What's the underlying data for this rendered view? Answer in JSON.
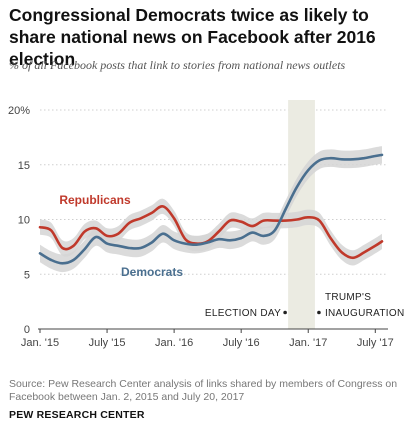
{
  "header": {
    "title": "Congressional Democrats twice as likely to share national news on Facebook after 2016 election",
    "subtitle": "% of all Facebook posts that link to stories from national news outlets"
  },
  "footer": {
    "source": "Source: Pew Research Center analysis of links shared by members of Congress on Facebook between Jan. 2, 2015 and July 20, 2017",
    "brand": "PEW RESEARCH CENTER"
  },
  "colors": {
    "republicans": "#c0392b",
    "democrats": "#4a6f8f",
    "band": "#d5d5d5",
    "highlight": "#ebebe2"
  },
  "chart_data": {
    "type": "line",
    "title": "Congressional Democrats twice as likely to share national news on Facebook after 2016 election",
    "subtitle": "% of all Facebook posts that link to stories from national news outlets",
    "x_tick_labels": [
      "Jan. '15",
      "July '15",
      "Jan. '16",
      "July '16",
      "Jan. '17",
      "July '17"
    ],
    "x_tick_months": [
      0,
      6,
      12,
      18,
      24,
      30
    ],
    "y_ticks": [
      0,
      5,
      10,
      15,
      20
    ],
    "y_tick_labels": [
      "0",
      "5",
      "10",
      "15",
      "20%"
    ],
    "ylim": [
      0,
      20
    ],
    "grid": true,
    "shaded_region": {
      "start_month": 22.2,
      "end_month": 24.6
    },
    "annotations": [
      {
        "text": "ELECTION DAY",
        "month": 22.2
      },
      {
        "text": "TRUMP'S",
        "month": 24.6
      },
      {
        "text": "INAUGURATION",
        "month": 24.6
      }
    ],
    "series": [
      {
        "name": "Republicans",
        "x": [
          0,
          1,
          2,
          3,
          4,
          5,
          6,
          7,
          8,
          9,
          10,
          11,
          12,
          13,
          14,
          15,
          16,
          17,
          18,
          19,
          20,
          21,
          22,
          23,
          24,
          25,
          26,
          27,
          28,
          29,
          30,
          30.6
        ],
        "y": [
          9.3,
          9.0,
          7.4,
          7.6,
          8.9,
          9.2,
          8.5,
          8.7,
          9.7,
          10.1,
          10.6,
          11.2,
          10.1,
          8.2,
          7.8,
          8.0,
          8.9,
          9.9,
          9.8,
          9.4,
          9.9,
          9.9,
          9.9,
          10.0,
          10.2,
          9.9,
          8.3,
          7.0,
          6.5,
          7.0,
          7.6,
          8.0
        ],
        "band_halfwidth": 0.7
      },
      {
        "name": "Democrats",
        "x": [
          0,
          1,
          2,
          3,
          4,
          5,
          6,
          7,
          8,
          9,
          10,
          11,
          12,
          13,
          14,
          15,
          16,
          17,
          18,
          19,
          20,
          21,
          22,
          23,
          24,
          25,
          26,
          27,
          28,
          29,
          30,
          30.6
        ],
        "y": [
          6.9,
          6.3,
          6.0,
          6.3,
          7.3,
          8.4,
          7.8,
          7.6,
          7.4,
          7.4,
          7.9,
          8.7,
          8.1,
          7.8,
          7.7,
          7.9,
          8.2,
          8.1,
          8.3,
          8.8,
          8.5,
          9.0,
          11.0,
          13.0,
          14.5,
          15.4,
          15.6,
          15.5,
          15.5,
          15.6,
          15.8,
          15.9
        ],
        "band_halfwidth": 0.8
      }
    ]
  }
}
